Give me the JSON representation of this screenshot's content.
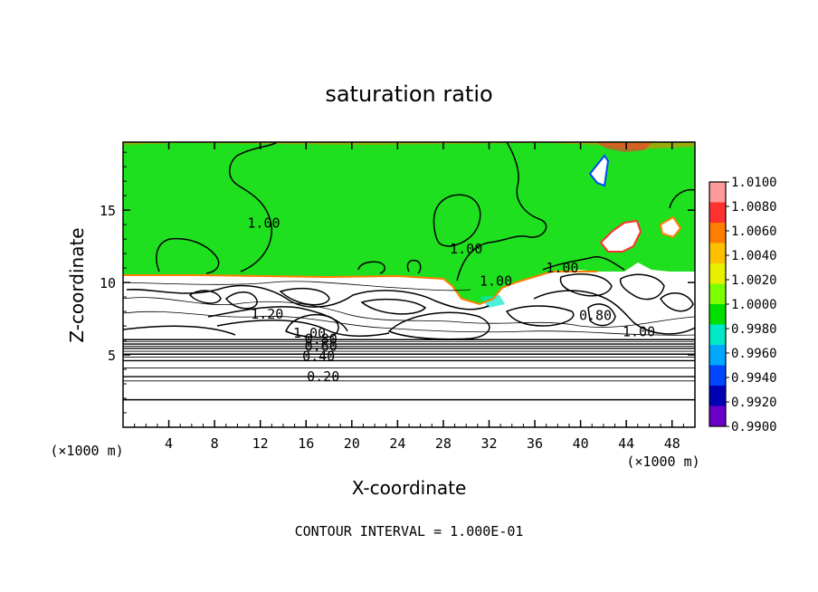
{
  "chart_data": {
    "type": "heatmap",
    "title": "saturation ratio",
    "xlabel": "X-coordinate",
    "ylabel": "Z-coordinate",
    "x_unit": "(×1000 m)",
    "z_unit": "(×1000 m)",
    "x_ticks": [
      4,
      8,
      12,
      16,
      20,
      24,
      28,
      32,
      36,
      40,
      44,
      48
    ],
    "z_ticks": [
      5,
      10,
      15
    ],
    "xlim": [
      0,
      50
    ],
    "zlim": [
      0,
      19.7
    ],
    "footer": "CONTOUR INTERVAL = 1.000E-01",
    "colorbar": {
      "range": [
        0.99,
        1.01
      ],
      "labels": [
        "1.0100",
        "1.0080",
        "1.0060",
        "1.0040",
        "1.0020",
        "1.0000",
        "0.9980",
        "0.9960",
        "0.9940",
        "0.9920",
        "0.9900"
      ],
      "colors": [
        "#ff9a9a",
        "#ff3030",
        "#ff7e00",
        "#ffc000",
        "#e8f000",
        "#7cff00",
        "#00e000",
        "#00e8c8",
        "#00a8ff",
        "#0046ff",
        "#0000b4",
        "#6a00c8"
      ]
    },
    "contour_labels": [
      {
        "text": "1.00",
        "x": 12.3,
        "z": 13.8
      },
      {
        "text": "1.00",
        "x": 30.0,
        "z": 12.0
      },
      {
        "text": "1.00",
        "x": 38.4,
        "z": 10.7
      },
      {
        "text": "1.00",
        "x": 32.6,
        "z": 9.8
      },
      {
        "text": "1.20",
        "x": 12.6,
        "z": 7.5
      },
      {
        "text": "1.00",
        "x": 16.3,
        "z": 6.2
      },
      {
        "text": "0.80",
        "x": 17.3,
        "z": 5.8
      },
      {
        "text": "0.60",
        "x": 17.3,
        "z": 5.3
      },
      {
        "text": "0.40",
        "x": 17.1,
        "z": 4.6
      },
      {
        "text": "0.20",
        "x": 17.5,
        "z": 3.2
      },
      {
        "text": "1.00",
        "x": 45.1,
        "z": 6.3
      },
      {
        "text": "0.80",
        "x": 41.3,
        "z": 7.4
      }
    ],
    "horizontal_contours_z": [
      1.9,
      3.2,
      3.5,
      4.1,
      4.6,
      4.85,
      5.05,
      5.25,
      5.45,
      5.6,
      5.75,
      5.9,
      6.05
    ]
  }
}
